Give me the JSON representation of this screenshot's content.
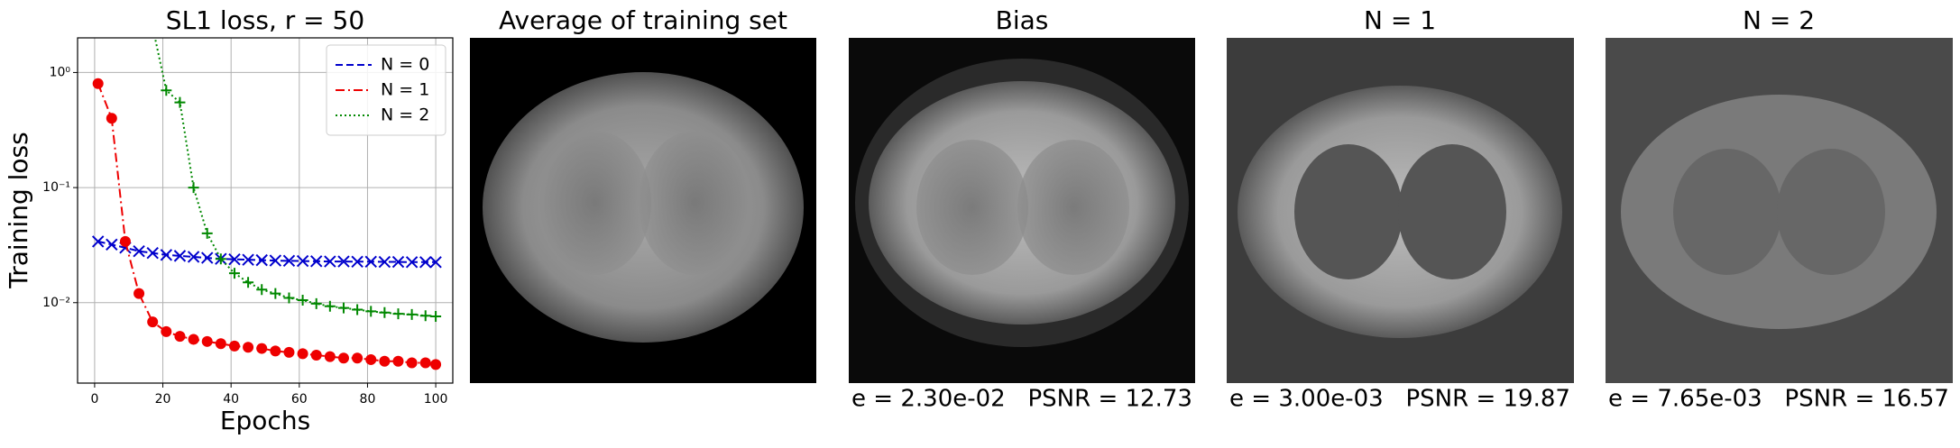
{
  "chart_data": {
    "type": "line",
    "title": "SL1 loss, r = 50",
    "x_label": "Epochs",
    "y_label": "Training loss",
    "log_y": true,
    "grid": true,
    "legend": "upper right",
    "xlim": [
      -5,
      105
    ],
    "xticks": [
      0,
      20,
      40,
      60,
      80,
      100
    ],
    "ylim": [
      0.002,
      2
    ],
    "yticks": [
      {
        "value": 1,
        "label": "10⁰"
      },
      {
        "value": 0.1,
        "label": "10⁻¹"
      },
      {
        "value": 0.01,
        "label": "10⁻²"
      }
    ],
    "x": [
      1,
      5,
      9,
      13,
      17,
      21,
      25,
      29,
      33,
      37,
      41,
      45,
      49,
      53,
      57,
      61,
      65,
      69,
      73,
      77,
      81,
      85,
      89,
      93,
      97,
      100
    ],
    "series": [
      {
        "name": "N = 0",
        "color": "#0000cc",
        "line_style": "dashed",
        "marker": "x",
        "values": [
          0.034,
          0.032,
          0.03,
          0.028,
          0.027,
          0.026,
          0.0255,
          0.025,
          0.0245,
          0.024,
          0.0238,
          0.0236,
          0.0234,
          0.0232,
          0.0231,
          0.023,
          0.0229,
          0.0228,
          0.0228,
          0.0227,
          0.0227,
          0.0226,
          0.0226,
          0.0225,
          0.0225,
          0.0225
        ]
      },
      {
        "name": "N = 1",
        "color": "#ee0000",
        "line_style": "dashdot",
        "marker": "o",
        "values": [
          0.8,
          0.4,
          0.034,
          0.012,
          0.0068,
          0.0056,
          0.0051,
          0.0048,
          0.0046,
          0.0044,
          0.0042,
          0.0041,
          0.004,
          0.0038,
          0.0037,
          0.0036,
          0.0035,
          0.0034,
          0.0033,
          0.0033,
          0.0032,
          0.0031,
          0.0031,
          0.003,
          0.003,
          0.0029
        ]
      },
      {
        "name": "N = 2",
        "color": "#008800",
        "line_style": "dotted",
        "marker": "+",
        "values": [
          null,
          null,
          null,
          null,
          2.5,
          0.7,
          0.55,
          0.1,
          0.04,
          0.024,
          0.018,
          0.015,
          0.013,
          0.012,
          0.011,
          0.0105,
          0.0098,
          0.0093,
          0.009,
          0.0087,
          0.0084,
          0.0082,
          0.008,
          0.0079,
          0.0077,
          0.0076
        ]
      }
    ]
  },
  "panels": [
    {
      "title": "Average of training set"
    },
    {
      "title": "Bias",
      "caption": "e = 2.30e-02   PSNR = 12.73"
    },
    {
      "title": "N = 1",
      "caption": "e = 3.00e-03   PSNR = 19.87"
    },
    {
      "title": "N = 2",
      "caption": "e = 7.65e-03   PSNR = 16.57"
    }
  ]
}
